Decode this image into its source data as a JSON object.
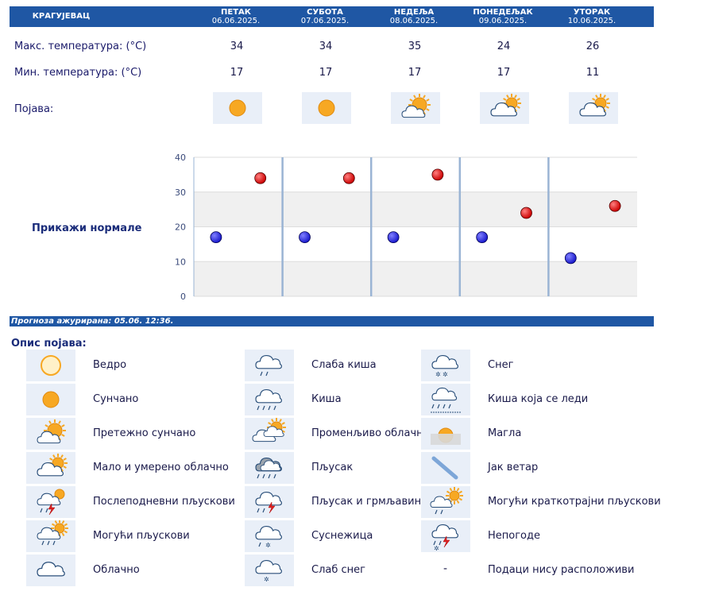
{
  "header": {
    "city": "КРАГУЈЕВАЦ",
    "days": [
      {
        "name": "ПЕТАК",
        "date": "06.06.2025."
      },
      {
        "name": "СУБОТА",
        "date": "07.06.2025."
      },
      {
        "name": "НЕДЕЉА",
        "date": "08.06.2025."
      },
      {
        "name": "ПОНЕДЕЉАК",
        "date": "09.06.2025."
      },
      {
        "name": "УТОРАК",
        "date": "10.06.2025."
      }
    ]
  },
  "rows": {
    "max_label": "Макс. температура: (°C)",
    "min_label": "Мин. температура: (°C)",
    "phen_label": "Појава:"
  },
  "max_temps": [
    "34",
    "34",
    "35",
    "24",
    "26"
  ],
  "min_temps": [
    "17",
    "17",
    "17",
    "17",
    "11"
  ],
  "day_icons": [
    "sunny-icon",
    "sunny-icon",
    "mostly-sunny-icon",
    "partly-cloudy-icon",
    "partly-cloudy-icon"
  ],
  "show_normals": "Прикажи нормале",
  "updated": "Прогноза ажурирана:  05.06.  12:36.",
  "legend_title": "Опис појава:",
  "legend": [
    {
      "icon": "clear-icon",
      "label": "Ведро"
    },
    {
      "icon": "sunny-icon",
      "label": "Сунчано"
    },
    {
      "icon": "mostly-sunny-icon",
      "label": "Претежно сунчано"
    },
    {
      "icon": "partly-cloudy-icon",
      "label": "Мало и умерено облачно"
    },
    {
      "icon": "afternoon-showers-icon",
      "label": "Послеподневни пљускови"
    },
    {
      "icon": "possible-showers-icon",
      "label": "Могући пљускови"
    },
    {
      "icon": "cloudy-icon",
      "label": "Облачно"
    },
    {
      "icon": "light-rain-icon",
      "label": "Слаба киша"
    },
    {
      "icon": "rain-icon",
      "label": "Киша"
    },
    {
      "icon": "variable-cloudy-icon",
      "label": "Променљиво облачно"
    },
    {
      "icon": "shower-icon",
      "label": "Пљусак"
    },
    {
      "icon": "thunder-shower-icon",
      "label": "Пљусак и грмљавина"
    },
    {
      "icon": "sleet-icon",
      "label": "Суснежица"
    },
    {
      "icon": "light-snow-icon",
      "label": "Слаб снег"
    },
    {
      "icon": "snow-icon",
      "label": "Снег"
    },
    {
      "icon": "freezing-rain-icon",
      "label": "Киша која се леди"
    },
    {
      "icon": "fog-icon",
      "label": "Магла"
    },
    {
      "icon": "strong-wind-icon",
      "label": "Јак ветар"
    },
    {
      "icon": "brief-showers-icon",
      "label": "Могући краткотрајни пљускови"
    },
    {
      "icon": "storm-icon",
      "label": "Непогоде"
    },
    {
      "icon": "no-data-icon",
      "label": "Подаци нису расположиви",
      "symbol": "-"
    }
  ],
  "colors": {
    "header": "#1f57a4",
    "max_dot": "#cc0000",
    "min_dot": "#1a1acc",
    "sun": "#f7a823",
    "cloud": "#ffffff"
  },
  "chart_data": {
    "type": "scatter",
    "categories": [
      "ПЕТАК",
      "СУБОТА",
      "НЕДЕЉА",
      "ПОНЕДЕЉАК",
      "УТОРАК"
    ],
    "series": [
      {
        "values": [
          34,
          34,
          35,
          24,
          26
        ]
      },
      {
        "values": [
          17,
          17,
          17,
          17,
          11
        ]
      }
    ],
    "ylim": [
      0,
      40
    ],
    "yticks": [
      0,
      10,
      20,
      30,
      40
    ],
    "grid": true
  }
}
